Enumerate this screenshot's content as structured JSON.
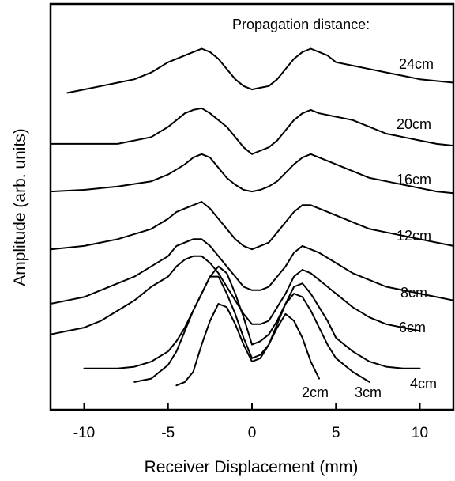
{
  "chart_data": {
    "type": "line",
    "title": "",
    "xlabel": "Receiver Displacement (mm)",
    "ylabel": "Amplitude (arb. units)",
    "legend_title": "Propagation distance:",
    "xlim": [
      -12,
      12
    ],
    "ylim": [
      0,
      100
    ],
    "x_ticks": [
      -10,
      -5,
      0,
      5,
      10
    ],
    "x_tick_labels": [
      "-10",
      "-5",
      "0",
      "5",
      "10"
    ],
    "y_ticks_labeled": false,
    "grid": false,
    "series": [
      {
        "name": "24cm",
        "x": [
          -11,
          -10,
          -9,
          -8,
          -7,
          -6,
          -5,
          -4.5,
          -4,
          -3.5,
          -3,
          -2.5,
          -2,
          -1.5,
          -1,
          -0.5,
          0,
          0.5,
          1,
          1.5,
          2,
          2.5,
          3,
          3.5,
          4,
          4.5,
          5,
          6,
          7,
          8,
          9,
          10,
          11,
          12
        ],
        "y": [
          82,
          83,
          84,
          85,
          86,
          88,
          91,
          92,
          93,
          94,
          95,
          94,
          92,
          89,
          86,
          84,
          83,
          83.5,
          84,
          86,
          89,
          92,
          94,
          95,
          94,
          93,
          91,
          90,
          89,
          88,
          87,
          86,
          85.5,
          85
        ]
      },
      {
        "name": "20cm",
        "x": [
          -12,
          -10,
          -8,
          -6,
          -5,
          -4.5,
          -4,
          -3.5,
          -3,
          -2.5,
          -2,
          -1.5,
          -1,
          -0.5,
          0,
          0.5,
          1,
          1.5,
          2,
          2.5,
          3,
          3.5,
          4,
          5,
          6,
          7,
          8,
          9,
          10,
          11,
          12
        ],
        "y": [
          67,
          67,
          67,
          69,
          72,
          74,
          76,
          77,
          77.5,
          76,
          74,
          72,
          69,
          66,
          64,
          65,
          66,
          68,
          71,
          74,
          76,
          77,
          76,
          75,
          74,
          72,
          70,
          69,
          68,
          67,
          66.5
        ]
      },
      {
        "name": "16cm",
        "x": [
          -12,
          -10,
          -8,
          -6,
          -5,
          -4.5,
          -4,
          -3.5,
          -3,
          -2.5,
          -2,
          -1.5,
          -1,
          -0.5,
          0,
          0.5,
          1,
          1.5,
          2,
          2.5,
          3,
          3.5,
          4,
          5,
          6,
          7,
          8,
          9,
          10,
          11,
          12
        ],
        "y": [
          53,
          53.5,
          54.5,
          56,
          58,
          59.5,
          61,
          63,
          64,
          63,
          60,
          57,
          55,
          53.5,
          53,
          53.5,
          54.5,
          56,
          58.5,
          61,
          63,
          64,
          63,
          61,
          59,
          57,
          56,
          55,
          54,
          53,
          52.5
        ]
      },
      {
        "name": "12cm",
        "x": [
          -12,
          -10,
          -8,
          -6,
          -5,
          -4.5,
          -4,
          -3.5,
          -3,
          -2.5,
          -2,
          -1.5,
          -1,
          -0.5,
          0,
          0.5,
          1,
          1.5,
          2,
          2.5,
          3,
          3.5,
          4,
          5,
          6,
          7,
          8,
          9,
          10,
          11,
          12
        ],
        "y": [
          36,
          37,
          39,
          42,
          45,
          47,
          48,
          49,
          50,
          48,
          45,
          42,
          39,
          37,
          36,
          37,
          38,
          41,
          44,
          47,
          49,
          49,
          48,
          46,
          44,
          42,
          41,
          40,
          39,
          38,
          37
        ]
      },
      {
        "name": "8cm",
        "x": [
          -12,
          -11,
          -10,
          -9,
          -8,
          -7,
          -6,
          -5,
          -4.5,
          -4,
          -3.5,
          -3,
          -2.5,
          -2,
          -1.5,
          -1,
          -0.5,
          0,
          0.5,
          1,
          1.5,
          2,
          2.5,
          3,
          3.5,
          4,
          5,
          6,
          7,
          8,
          9,
          10,
          11,
          12
        ],
        "y": [
          20,
          21,
          22,
          24,
          26,
          28,
          31,
          34,
          37,
          38,
          39,
          39,
          37,
          34,
          31,
          28,
          25,
          24,
          24,
          25,
          28,
          31,
          35,
          37,
          36,
          35,
          32,
          29,
          27,
          25,
          24,
          23,
          22,
          21
        ]
      },
      {
        "name": "6cm",
        "x": [
          -12,
          -11,
          -10,
          -9,
          -8,
          -7,
          -6,
          -5,
          -4.5,
          -4,
          -3.5,
          -3,
          -2.5,
          -2,
          -1.5,
          -1,
          -0.5,
          0,
          0.5,
          1,
          1.5,
          2,
          2.5,
          3,
          3.5,
          4,
          5,
          6,
          7,
          8,
          9,
          10
        ],
        "y": [
          11,
          12,
          13,
          15,
          18,
          21,
          25,
          28,
          31,
          33,
          34,
          34,
          32,
          29,
          25,
          21,
          17,
          14,
          14,
          15,
          19,
          23,
          28,
          30,
          29,
          27,
          23,
          19,
          16,
          14,
          13,
          12
        ]
      },
      {
        "name": "4cm",
        "x": [
          -10,
          -8,
          -7,
          -6,
          -5,
          -4.5,
          -4,
          -3.5,
          -3,
          -2.5,
          -2,
          -1.5,
          -1,
          -0.5,
          0,
          0.5,
          1,
          1.5,
          2,
          2.5,
          3,
          3.5,
          4,
          4.5,
          5,
          6,
          7,
          8,
          9,
          10
        ],
        "y": [
          1,
          1,
          1.5,
          3,
          6,
          9,
          13,
          18,
          23,
          28,
          31,
          29,
          23,
          16,
          8,
          9,
          11,
          15,
          20,
          25,
          26,
          23,
          19,
          15,
          10,
          6,
          3,
          1.5,
          1,
          1
        ]
      },
      {
        "name": "3cm",
        "x": [
          -7,
          -6,
          -5,
          -4.5,
          -4,
          -3.5,
          -3,
          -2.5,
          -2,
          -1.5,
          -1,
          -0.5,
          0,
          0.5,
          1,
          1.5,
          2,
          2.5,
          3,
          3.5,
          4,
          4.5,
          5,
          6,
          7
        ],
        "y": [
          -3,
          -2,
          2,
          6,
          12,
          18,
          23,
          28,
          28,
          23,
          17,
          10,
          4,
          5,
          8,
          14,
          20,
          23,
          22,
          18,
          13,
          8,
          4,
          0,
          -3
        ]
      },
      {
        "name": "2cm",
        "x": [
          -4.5,
          -4,
          -3.5,
          -3,
          -2.5,
          -2,
          -1.5,
          -1,
          -0.5,
          0,
          0.5,
          1,
          1.5,
          2,
          2.5,
          3,
          3.5,
          4
        ],
        "y": [
          -4,
          -3,
          0,
          8,
          15,
          20,
          19,
          14,
          8,
          3,
          4,
          8,
          13,
          17,
          15,
          10,
          3,
          -2
        ]
      }
    ],
    "curve_labels": [
      {
        "series": "24cm",
        "text": "24cm"
      },
      {
        "series": "20cm",
        "text": "20cm"
      },
      {
        "series": "16cm",
        "text": "16cm"
      },
      {
        "series": "12cm",
        "text": "12cm"
      },
      {
        "series": "8cm",
        "text": "8cm"
      },
      {
        "series": "6cm",
        "text": "6cm"
      },
      {
        "series": "4cm",
        "text": "4cm"
      },
      {
        "series": "3cm",
        "text": "3cm"
      },
      {
        "series": "2cm",
        "text": "2cm"
      }
    ]
  }
}
